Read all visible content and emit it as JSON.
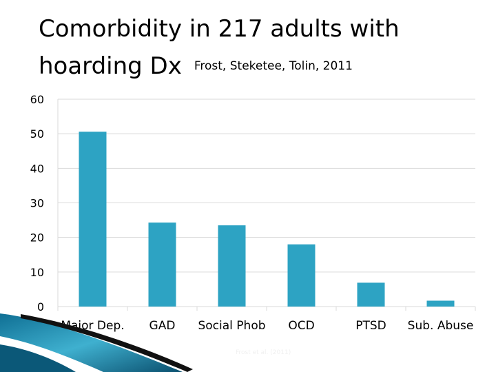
{
  "title": {
    "line1": "Comorbidity in 217 adults with",
    "line2": "hoarding Dx",
    "subtitle": "Frost, Steketee, Tolin,  2011"
  },
  "footnote": "Frost et al. (2011)",
  "chart_data": {
    "type": "bar",
    "title": "",
    "xlabel": "",
    "ylabel": "",
    "categories": [
      "Major Dep.",
      "GAD",
      "Social Phob",
      "OCD",
      "PTSD",
      "Sub. Abuse"
    ],
    "values": [
      50.6,
      24.3,
      23.5,
      18.0,
      6.9,
      1.7
    ],
    "ylim": [
      0,
      60
    ],
    "yticks": [
      0,
      10,
      20,
      30,
      40,
      50,
      60
    ],
    "grid": true,
    "bar_color": "#2da3c3",
    "grid_color": "#d9d9d9"
  }
}
